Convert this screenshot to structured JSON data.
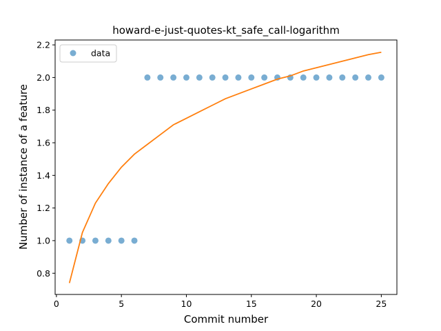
{
  "chart_data": {
    "type": "scatter",
    "title": "howard-e-just-quotes-kt_safe_call-logarithm",
    "xlabel": "Commit number",
    "ylabel": "Number of instance of a feature",
    "xlim": [
      -0.1,
      26.2
    ],
    "ylim": [
      0.67,
      2.23
    ],
    "x_ticks": [
      0,
      5,
      10,
      15,
      20,
      25
    ],
    "x_tick_labels": [
      "0",
      "5",
      "10",
      "15",
      "20",
      "25"
    ],
    "y_ticks": [
      0.8,
      1.0,
      1.2,
      1.4,
      1.6,
      1.8,
      2.0,
      2.2
    ],
    "y_tick_labels": [
      "0.8",
      "1.0",
      "1.2",
      "1.4",
      "1.6",
      "1.8",
      "2.0",
      "2.2"
    ],
    "grid": false,
    "legend_position": "top-left",
    "series": [
      {
        "name": "data",
        "kind": "scatter",
        "color": "#1f77b4",
        "x": [
          1,
          2,
          3,
          4,
          5,
          6,
          7,
          8,
          9,
          10,
          11,
          12,
          13,
          14,
          15,
          16,
          17,
          18,
          19,
          20,
          21,
          22,
          23,
          24,
          25
        ],
        "y": [
          1,
          1,
          1,
          1,
          1,
          1,
          2,
          2,
          2,
          2,
          2,
          2,
          2,
          2,
          2,
          2,
          2,
          2,
          2,
          2,
          2,
          2,
          2,
          2,
          2
        ]
      },
      {
        "kind": "line",
        "color": "#ff7f0e",
        "x": [
          1,
          2,
          3,
          4,
          5,
          6,
          7,
          8,
          9,
          10,
          11,
          12,
          13,
          14,
          15,
          16,
          17,
          18,
          19,
          20,
          21,
          22,
          23,
          24,
          25
        ],
        "y": [
          0.74,
          1.05,
          1.23,
          1.35,
          1.45,
          1.53,
          1.59,
          1.65,
          1.71,
          1.75,
          1.79,
          1.83,
          1.87,
          1.9,
          1.93,
          1.96,
          1.99,
          2.01,
          2.04,
          2.06,
          2.08,
          2.1,
          2.12,
          2.14,
          2.155
        ]
      }
    ]
  }
}
